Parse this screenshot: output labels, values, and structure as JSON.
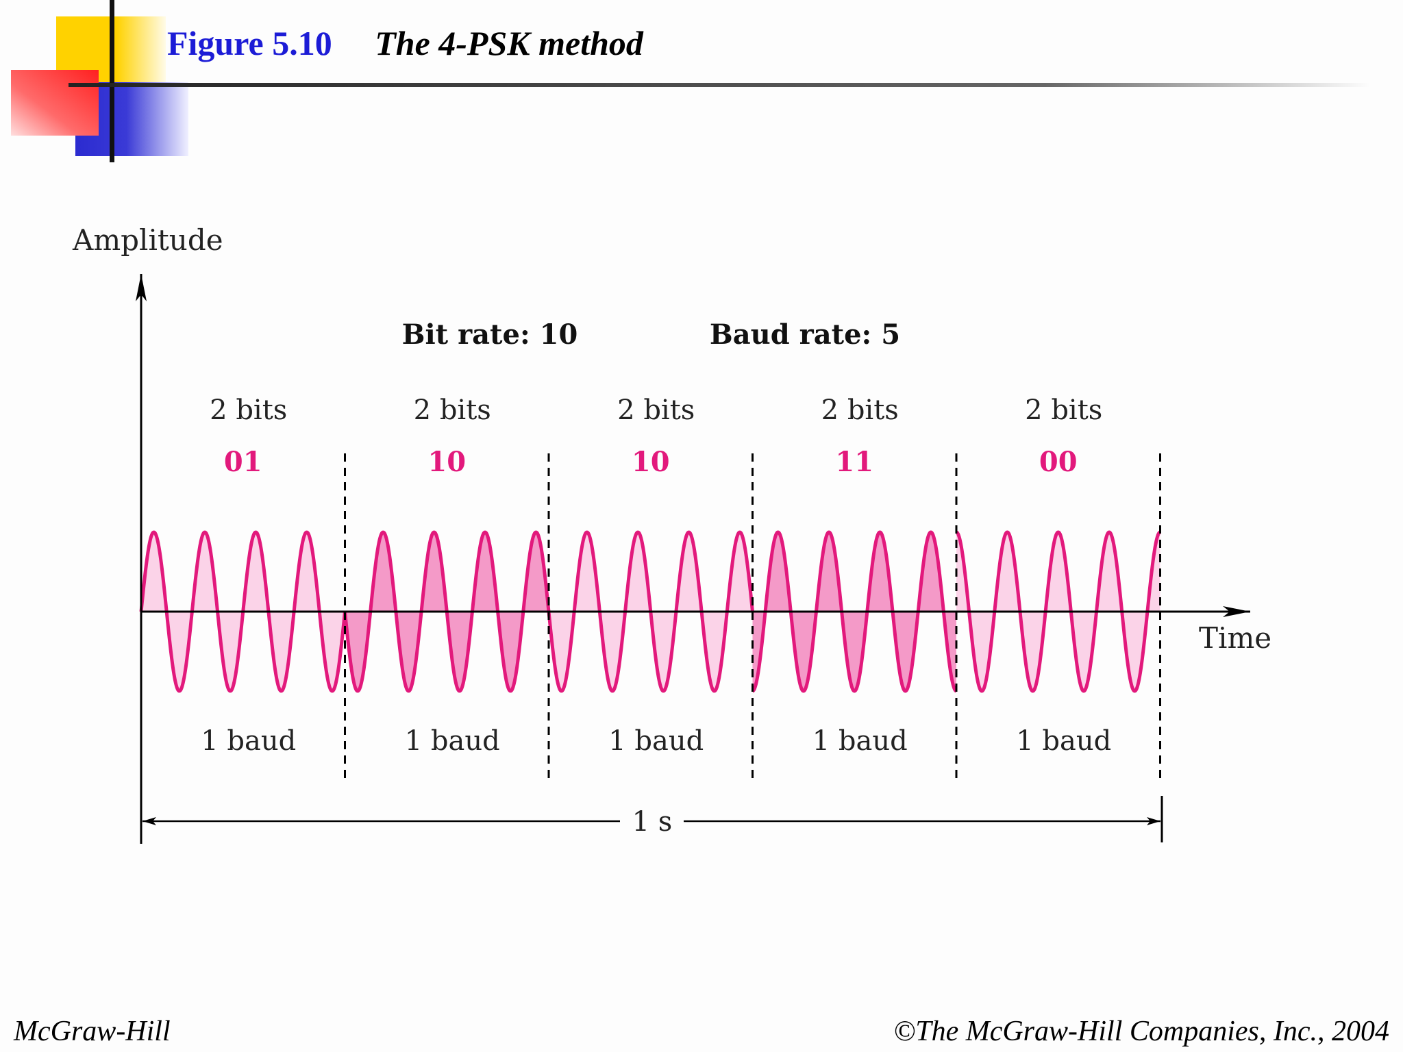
{
  "header": {
    "figure_number": "Figure 5.10",
    "figure_title": "The 4-PSK method"
  },
  "diagram": {
    "y_axis_label": "Amplitude",
    "x_axis_label": "Time",
    "bit_rate_label": "Bit rate: 10",
    "baud_rate_label": "Baud rate: 5",
    "duration_label": "1 s",
    "segments": [
      {
        "bits_label": "2 bits",
        "code": "01",
        "baud_label": "1 baud",
        "phase_deg": 0
      },
      {
        "bits_label": "2 bits",
        "code": "10",
        "baud_label": "1 baud",
        "phase_deg": 180
      },
      {
        "bits_label": "2 bits",
        "code": "10",
        "baud_label": "1 baud",
        "phase_deg": 180
      },
      {
        "bits_label": "2 bits",
        "code": "11",
        "baud_label": "1 baud",
        "phase_deg": 270
      },
      {
        "bits_label": "2 bits",
        "code": "00",
        "baud_label": "1 baud",
        "phase_deg": 90
      }
    ],
    "cycles_per_baud": 4
  },
  "colors": {
    "wave_stroke": "#e2197c",
    "wave_fill_light": "#fbd3e8",
    "wave_fill_medium": "#f49ac8",
    "code_text": "#e2197c",
    "title_blue": "#1c1cd6",
    "logo_yellow": "#ffd200",
    "logo_red": "#ff3030",
    "logo_blue": "#3434cc"
  },
  "footer": {
    "left": "McGraw-Hill",
    "right": "©The McGraw-Hill Companies, Inc., 2004"
  }
}
